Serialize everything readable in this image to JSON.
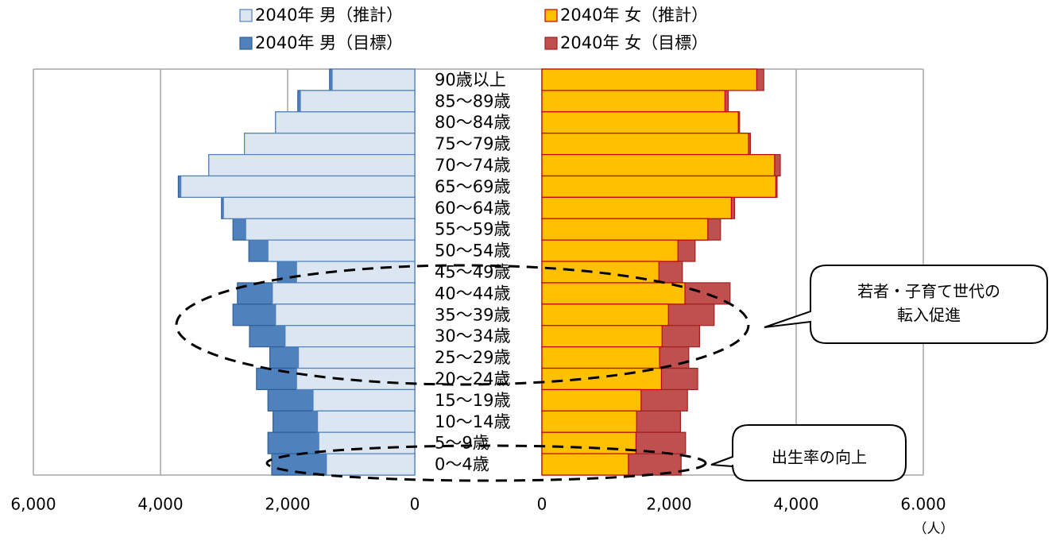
{
  "chart_data": {
    "type": "pyramid",
    "categories": [
      "90歳以上",
      "85～89歳",
      "80～84歳",
      "75～79歳",
      "70～74歳",
      "65～69歳",
      "60～64歳",
      "55～59歳",
      "50～54歳",
      "45～49歳",
      "40～44歳",
      "35～39歳",
      "30～34歳",
      "25～29歳",
      "20～24歳",
      "15～19歳",
      "10～14歳",
      "5～9歳",
      "0～4歳"
    ],
    "series": [
      {
        "name": "2040年 男（推計）",
        "side": "left",
        "color": "#dce6f2",
        "stroke": "#4f81bd",
        "values": [
          1300,
          1800,
          2190,
          2680,
          3240,
          3680,
          3010,
          2660,
          2310,
          1860,
          2240,
          2190,
          2040,
          1830,
          1860,
          1600,
          1530,
          1510,
          1390
        ]
      },
      {
        "name": "2040年 男（目標）",
        "side": "left",
        "color": "#4f81bd",
        "stroke": "#2f5f98",
        "values": [
          1340,
          1840,
          2190,
          2680,
          3240,
          3720,
          3040,
          2860,
          2610,
          2160,
          2790,
          2860,
          2600,
          2280,
          2490,
          2310,
          2230,
          2310,
          2250
        ]
      },
      {
        "name": "2040年 女（推計）",
        "side": "right",
        "color": "#ffc000",
        "stroke": "#c00000",
        "values": [
          3380,
          2880,
          3090,
          3250,
          3660,
          3680,
          2980,
          2610,
          2140,
          1840,
          2250,
          1990,
          1890,
          1850,
          1880,
          1560,
          1490,
          1480,
          1360
        ]
      },
      {
        "name": "2040年 女（目標）",
        "side": "right",
        "color": "#c0504d",
        "stroke": "#a02020",
        "values": [
          3490,
          2930,
          3110,
          3280,
          3750,
          3700,
          3030,
          2810,
          2410,
          2210,
          2960,
          2710,
          2480,
          2310,
          2450,
          2290,
          2180,
          2260,
          2190
        ]
      }
    ],
    "xlim": [
      0,
      6000
    ],
    "xticks": [
      {
        "value": 6000,
        "label": "6,000"
      },
      {
        "value": 4000,
        "label": "4,000"
      },
      {
        "value": 2000,
        "label": "2,000"
      },
      0
    ],
    "x2ticks": [
      0,
      {
        "value": 2000,
        "label": "2,000"
      },
      {
        "value": 4000,
        "label": "4,000"
      },
      {
        "value": 6000,
        "label": "6.000"
      }
    ],
    "unit": "（人）",
    "grid": true,
    "annotations": [
      {
        "lines": [
          "若者・子育て世代の",
          "転入促進"
        ]
      },
      {
        "lines": [
          "出生率の向上"
        ]
      }
    ]
  }
}
